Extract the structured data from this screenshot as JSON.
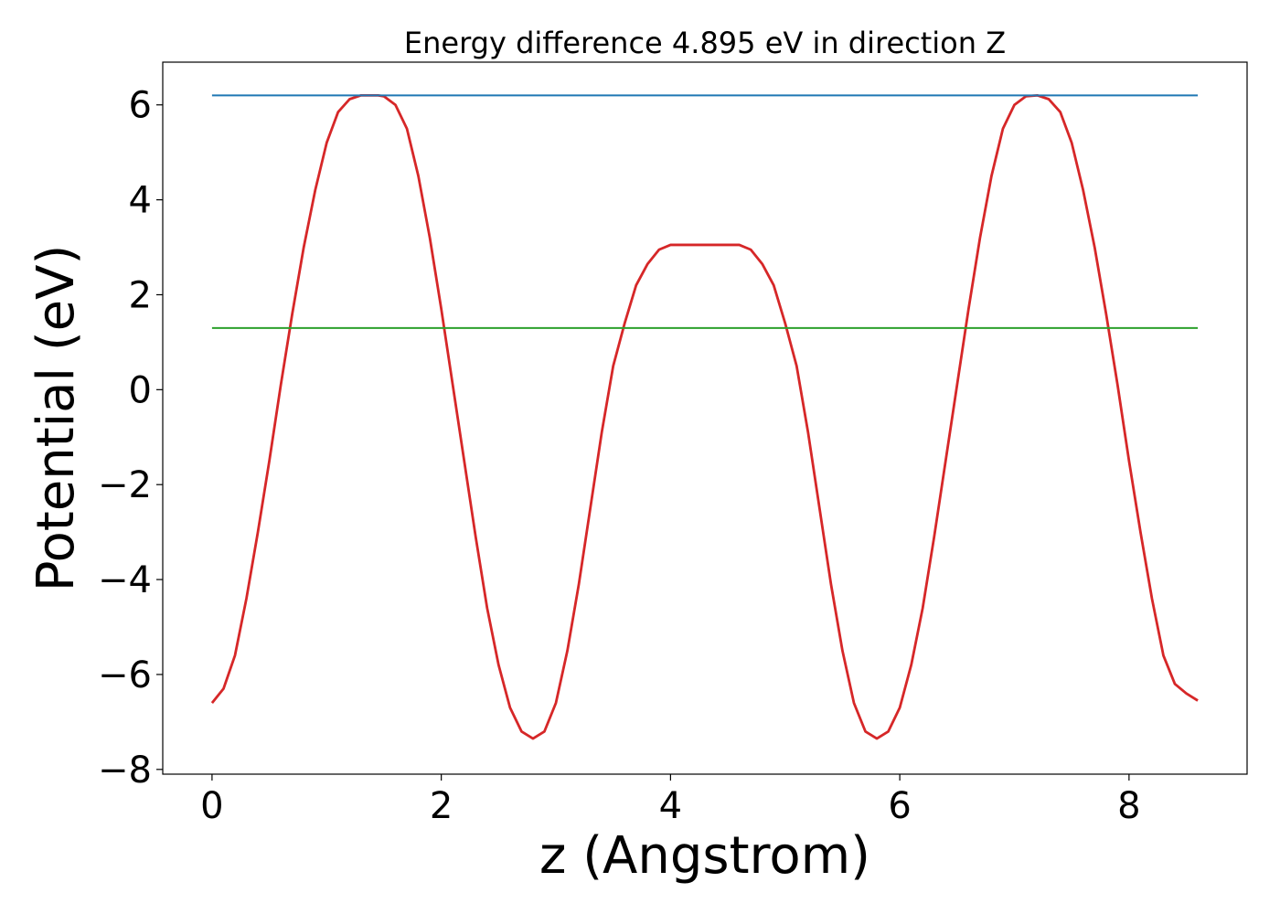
{
  "chart_data": {
    "type": "line",
    "title": "Energy difference 4.895 eV in direction Z",
    "xlabel": "z (Angstrom)",
    "ylabel": "Potential (eV)",
    "xlim": [
      -0.43,
      9.03
    ],
    "ylim": [
      -8.1,
      6.9
    ],
    "xticks": [
      0,
      2,
      4,
      6,
      8
    ],
    "yticks": [
      -8,
      -6,
      -4,
      -2,
      0,
      2,
      4,
      6
    ],
    "xtick_labels": [
      "0",
      "2",
      "4",
      "6",
      "8"
    ],
    "ytick_labels": [
      "−8",
      "−6",
      "−4",
      "−2",
      "0",
      "2",
      "4",
      "6"
    ],
    "grid": false,
    "legend": "none",
    "series": [
      {
        "color": "#d62728",
        "x": [
          0.0,
          0.1,
          0.2,
          0.3,
          0.4,
          0.5,
          0.6,
          0.7,
          0.8,
          0.9,
          1.0,
          1.1,
          1.2,
          1.3,
          1.4,
          1.45,
          1.5,
          1.6,
          1.7,
          1.8,
          1.9,
          2.0,
          2.1,
          2.2,
          2.3,
          2.4,
          2.5,
          2.6,
          2.7,
          2.8,
          2.9,
          3.0,
          3.1,
          3.2,
          3.3,
          3.4,
          3.5,
          3.6,
          3.7,
          3.8,
          3.9,
          4.0,
          4.2,
          4.4,
          4.6,
          4.7,
          4.8,
          4.9,
          5.0,
          5.1,
          5.2,
          5.3,
          5.4,
          5.5,
          5.6,
          5.7,
          5.8,
          5.9,
          6.0,
          6.1,
          6.2,
          6.3,
          6.4,
          6.5,
          6.6,
          6.7,
          6.8,
          6.9,
          7.0,
          7.1,
          7.2,
          7.3,
          7.4,
          7.5,
          7.6,
          7.7,
          7.8,
          7.9,
          8.0,
          8.1,
          8.2,
          8.3,
          8.4,
          8.5,
          8.6
        ],
        "y": [
          -6.6,
          -6.3,
          -5.6,
          -4.4,
          -3.0,
          -1.5,
          0.1,
          1.6,
          3.0,
          4.2,
          5.2,
          5.85,
          6.12,
          6.2,
          6.2,
          6.2,
          6.18,
          6.0,
          5.5,
          4.5,
          3.2,
          1.7,
          0.1,
          -1.5,
          -3.1,
          -4.6,
          -5.8,
          -6.7,
          -7.2,
          -7.35,
          -7.2,
          -6.6,
          -5.5,
          -4.1,
          -2.5,
          -0.9,
          0.5,
          1.4,
          2.2,
          2.65,
          2.95,
          3.05,
          3.05,
          3.05,
          3.05,
          2.95,
          2.65,
          2.2,
          1.4,
          0.5,
          -0.9,
          -2.5,
          -4.1,
          -5.5,
          -6.6,
          -7.2,
          -7.35,
          -7.2,
          -6.7,
          -5.8,
          -4.6,
          -3.1,
          -1.5,
          0.1,
          1.7,
          3.2,
          4.5,
          5.5,
          6.0,
          6.18,
          6.2,
          6.12,
          5.85,
          5.2,
          4.2,
          3.0,
          1.6,
          0.1,
          -1.5,
          -3.0,
          -4.4,
          -5.6,
          -6.2,
          -6.4,
          -6.55
        ]
      },
      {
        "color": "#1f77b4",
        "x": [
          0.0,
          8.6
        ],
        "y": [
          6.2,
          6.2
        ]
      },
      {
        "color": "#2ca02c",
        "x": [
          0.0,
          8.6
        ],
        "y": [
          1.3,
          1.3
        ]
      }
    ]
  }
}
